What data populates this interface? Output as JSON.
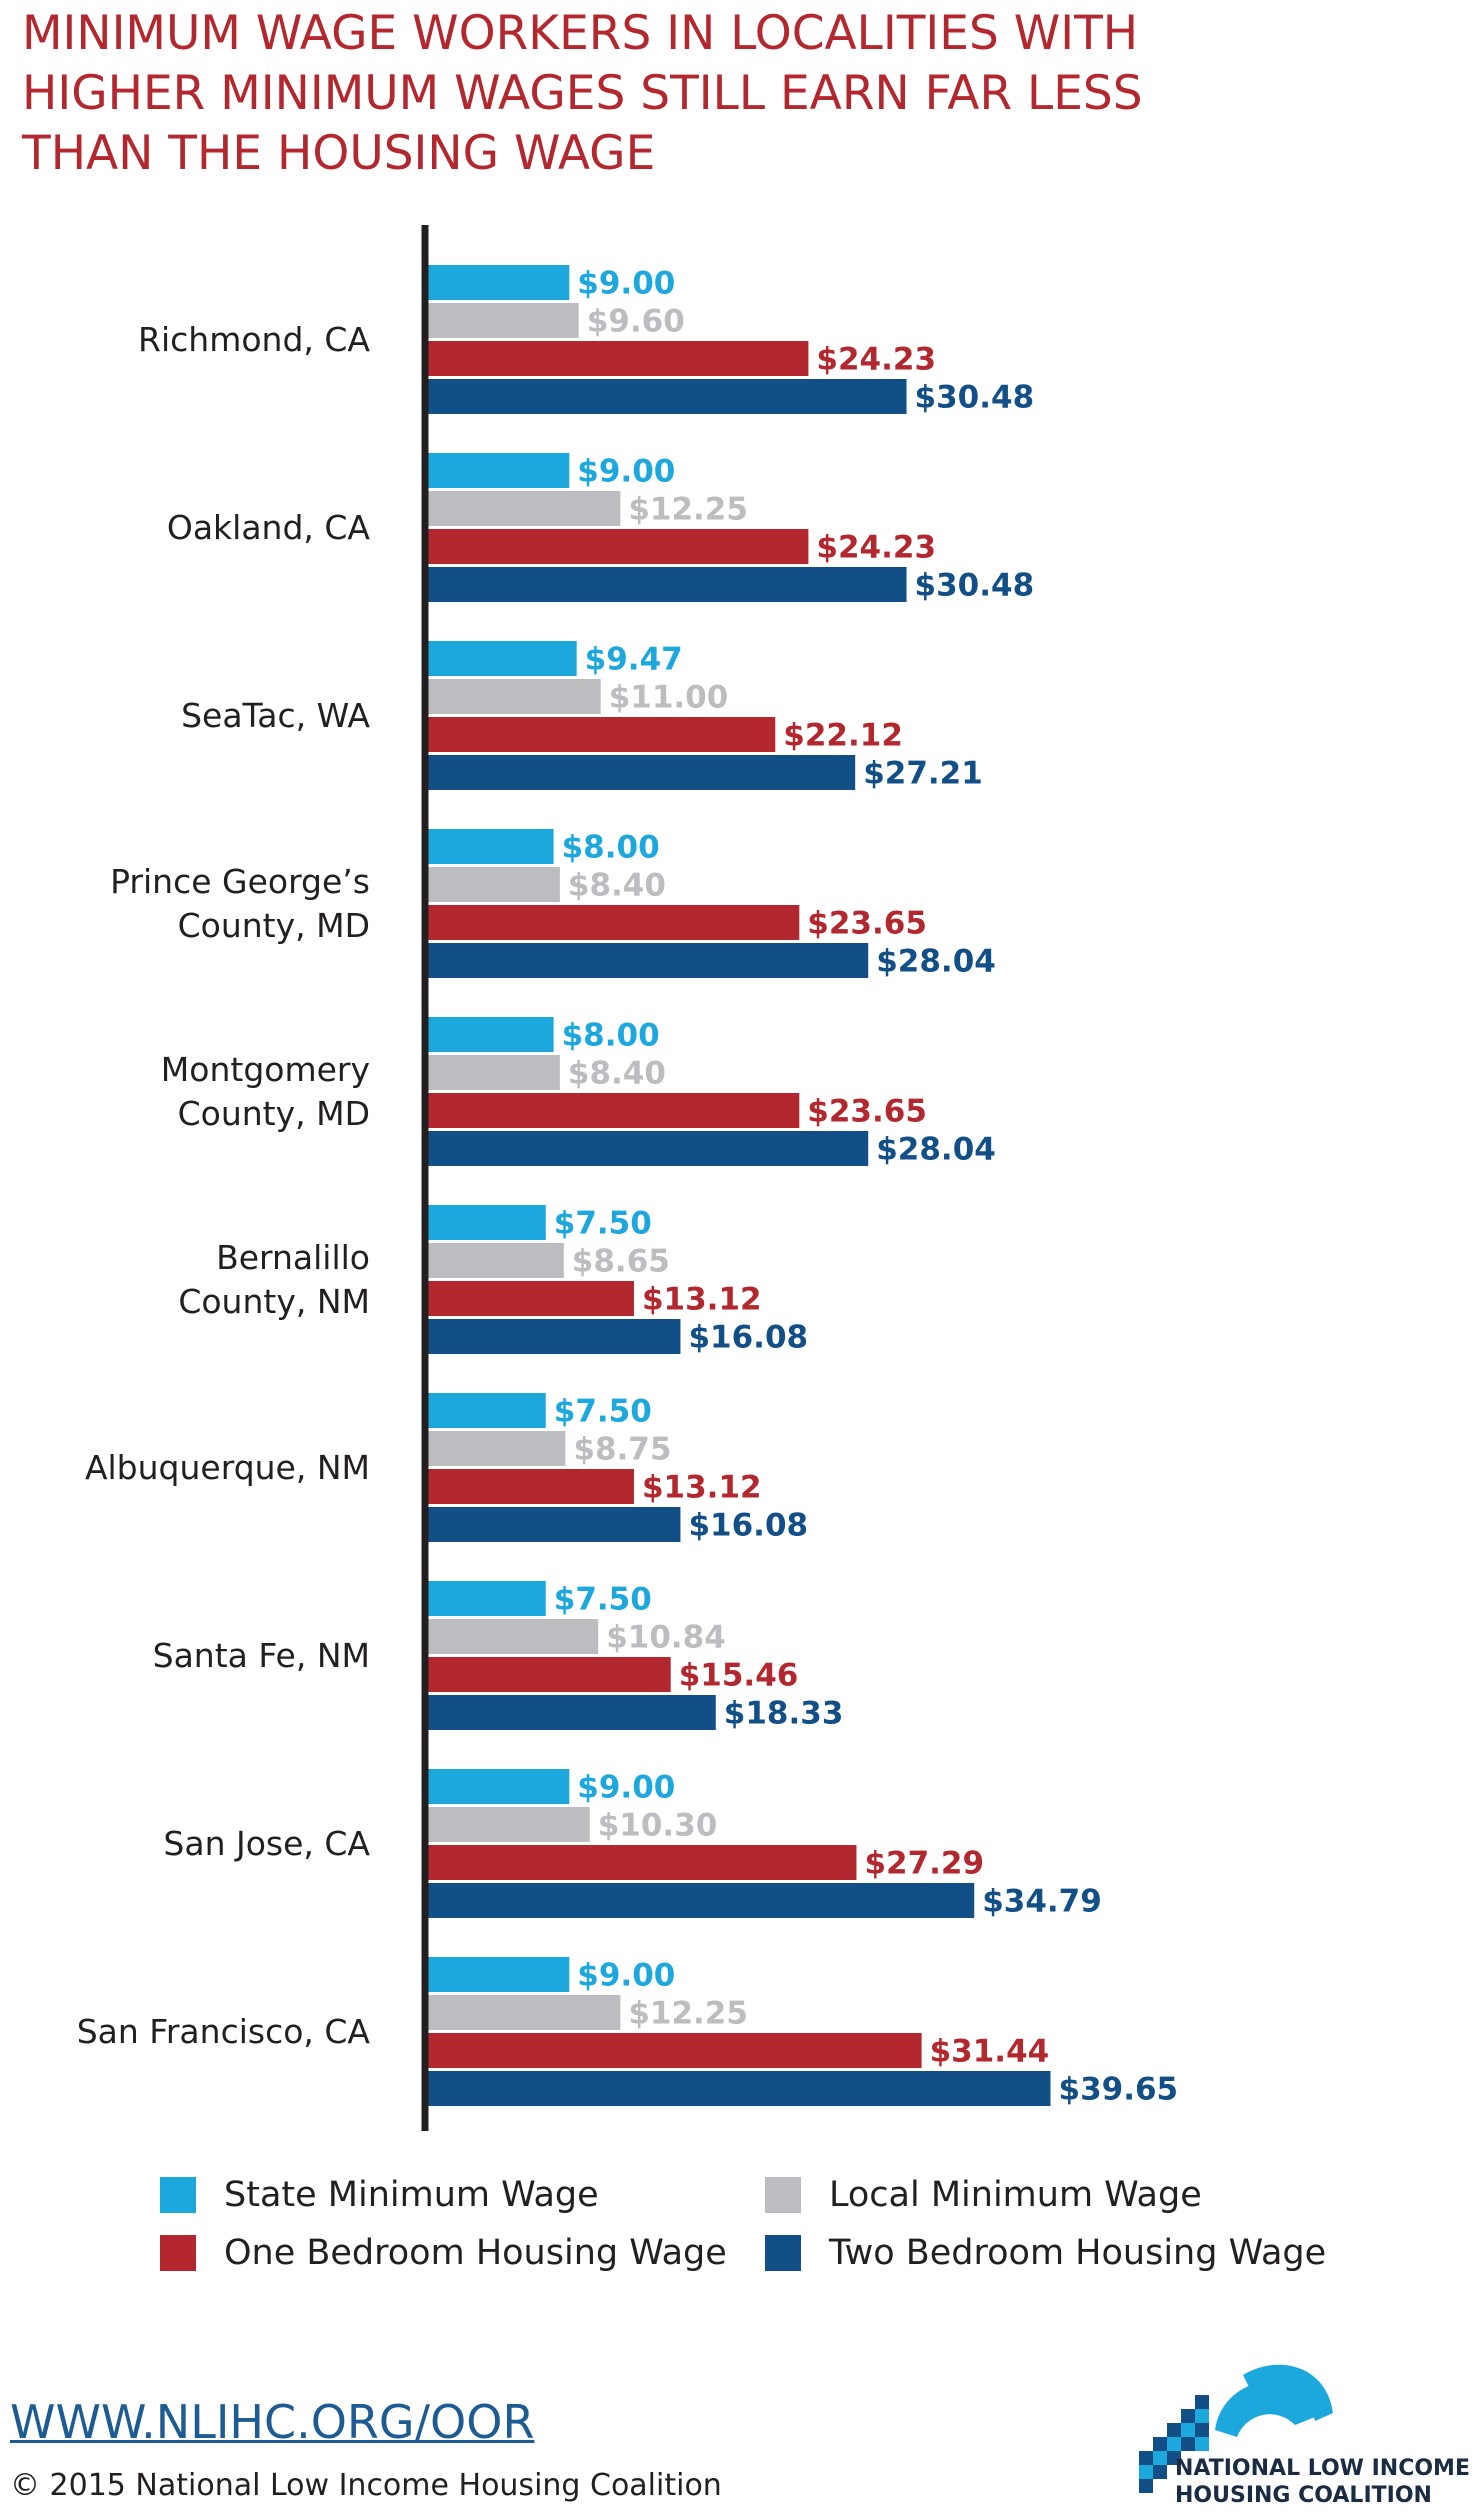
{
  "title": {
    "line1": "MINIMUM WAGE WORKERS IN LOCALITIES WITH",
    "line2": "HIGHER MINIMUM WAGES STILL EARN FAR LESS",
    "line3": "THAN THE HOUSING WAGE"
  },
  "colors": {
    "title": "#b3272e",
    "state": "#1ca7dd",
    "local": "#bcbdc0",
    "one_bedroom": "#b3272e",
    "two_bedroom": "#114f86",
    "axis": "#231f20",
    "url": "#1d5b93"
  },
  "chart_data": {
    "type": "bar",
    "orientation": "horizontal",
    "categories": [
      "Richmond, CA",
      "Oakland, CA",
      "SeaTac, WA",
      "Prince George’s County, MD",
      "Montgomery County, MD",
      "Bernalillo County, NM",
      "Albuquerque, NM",
      "Santa Fe, NM",
      "San Jose, CA",
      "San Francisco, CA"
    ],
    "category_lines": [
      [
        "Richmond, CA"
      ],
      [
        "Oakland, CA"
      ],
      [
        "SeaTac, WA"
      ],
      [
        "Prince George’s",
        "County, MD"
      ],
      [
        "Montgomery",
        "County, MD"
      ],
      [
        "Bernalillo",
        "County, NM"
      ],
      [
        "Albuquerque, NM"
      ],
      [
        "Santa Fe, NM"
      ],
      [
        "San Jose, CA"
      ],
      [
        "San Francisco, CA"
      ]
    ],
    "series": [
      {
        "name": "State Minimum Wage",
        "color": "#1ca7dd",
        "values": [
          9.0,
          9.0,
          9.47,
          8.0,
          8.0,
          7.5,
          7.5,
          7.5,
          9.0,
          9.0
        ],
        "labels": [
          "$9.00",
          "$9.00",
          "$9.47",
          "$8.00",
          "$8.00",
          "$7.50",
          "$7.50",
          "$7.50",
          "$9.00",
          "$9.00"
        ]
      },
      {
        "name": "Local Minimum Wage",
        "color": "#bcbdc0",
        "values": [
          9.6,
          12.25,
          11.0,
          8.4,
          8.4,
          8.65,
          8.75,
          10.84,
          10.3,
          12.25
        ],
        "labels": [
          "$9.60",
          "$12.25",
          "$11.00",
          "$8.40",
          "$8.40",
          "$8.65",
          "$8.75",
          "$10.84",
          "$10.30",
          "$12.25"
        ]
      },
      {
        "name": "One Bedroom Housing Wage",
        "color": "#b3272e",
        "values": [
          24.23,
          24.23,
          22.12,
          23.65,
          23.65,
          13.12,
          13.12,
          15.46,
          27.29,
          31.44
        ],
        "labels": [
          "$24.23",
          "$24.23",
          "$22.12",
          "$23.65",
          "$23.65",
          "$13.12",
          "$13.12",
          "$15.46",
          "$27.29",
          "$31.44"
        ]
      },
      {
        "name": "Two Bedroom Housing Wage",
        "color": "#114f86",
        "values": [
          30.48,
          30.48,
          27.21,
          28.04,
          28.04,
          16.08,
          16.08,
          18.33,
          34.79,
          39.65
        ],
        "labels": [
          "$30.48",
          "$30.48",
          "$27.21",
          "$28.04",
          "$28.04",
          "$16.08",
          "$16.08",
          "$18.33",
          "$34.79",
          "$39.65"
        ]
      }
    ],
    "xlim": [
      0,
      40
    ],
    "grid": false,
    "legend_position": "bottom"
  },
  "legend": [
    {
      "label": "State Minimum Wage",
      "color": "#1ca7dd"
    },
    {
      "label": "Local Minimum Wage",
      "color": "#bcbdc0"
    },
    {
      "label": "One Bedroom Housing Wage",
      "color": "#b3272e"
    },
    {
      "label": "Two Bedroom Housing Wage",
      "color": "#114f86"
    }
  ],
  "footer": {
    "url": "WWW.NLIHC.ORG/OOR",
    "copyright": "© 2015 National Low Income Housing Coalition"
  },
  "logo": {
    "line1": "NATIONAL LOW INCOME",
    "line2": "HOUSING COALITION"
  }
}
